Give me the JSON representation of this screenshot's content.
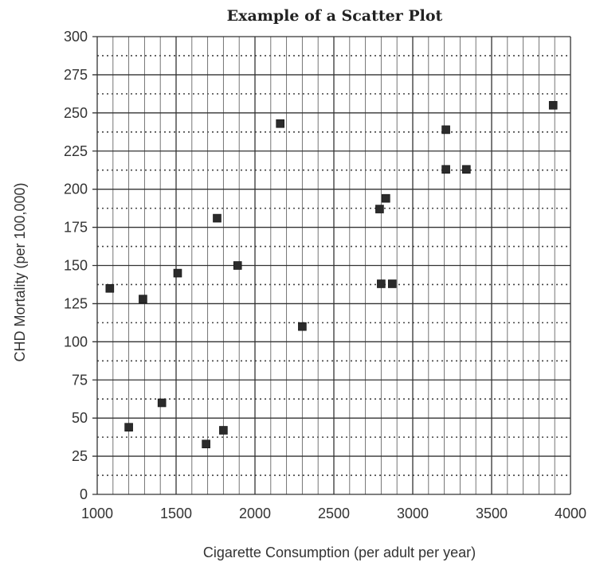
{
  "chart_data": {
    "type": "scatter",
    "title": "Example of a Scatter Plot",
    "xlabel": "Cigarette Consumption (per adult per year)",
    "ylabel": "CHD Mortality (per 100,000)",
    "xlim": [
      1000,
      4000
    ],
    "ylim": [
      0,
      300
    ],
    "x_ticks": [
      1000,
      1500,
      2000,
      2500,
      3000,
      3500,
      4000
    ],
    "y_ticks": [
      0,
      25,
      50,
      75,
      100,
      125,
      150,
      175,
      200,
      225,
      250,
      275,
      300
    ],
    "grid": true,
    "legend": "none",
    "marker": "square",
    "marker_color": "#2b2b2b",
    "points": [
      {
        "x": 1080,
        "y": 135
      },
      {
        "x": 1200,
        "y": 44
      },
      {
        "x": 1290,
        "y": 128
      },
      {
        "x": 1410,
        "y": 60
      },
      {
        "x": 1510,
        "y": 145
      },
      {
        "x": 1690,
        "y": 33
      },
      {
        "x": 1760,
        "y": 181
      },
      {
        "x": 1800,
        "y": 42
      },
      {
        "x": 1890,
        "y": 150
      },
      {
        "x": 2160,
        "y": 243
      },
      {
        "x": 2300,
        "y": 110
      },
      {
        "x": 2790,
        "y": 187
      },
      {
        "x": 2800,
        "y": 138
      },
      {
        "x": 2830,
        "y": 194
      },
      {
        "x": 2870,
        "y": 138
      },
      {
        "x": 3210,
        "y": 239
      },
      {
        "x": 3210,
        "y": 213
      },
      {
        "x": 3340,
        "y": 213
      },
      {
        "x": 3890,
        "y": 255
      }
    ]
  }
}
